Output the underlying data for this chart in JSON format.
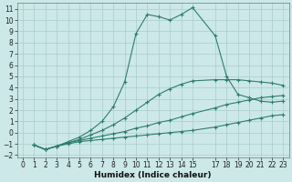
{
  "xlabel": "Humidex (Indice chaleur)",
  "bg_color": "#cce8e8",
  "grid_color": "#aacccc",
  "line_color": "#2e7d6e",
  "xlim": [
    -0.5,
    23.5
  ],
  "ylim": [
    -2.2,
    11.5
  ],
  "xticks": [
    0,
    1,
    2,
    3,
    4,
    5,
    6,
    7,
    8,
    9,
    10,
    11,
    12,
    13,
    14,
    15,
    17,
    18,
    19,
    20,
    21,
    22,
    23
  ],
  "yticks": [
    -2,
    -1,
    0,
    1,
    2,
    3,
    4,
    5,
    6,
    7,
    8,
    9,
    10,
    11
  ],
  "series": [
    {
      "x": [
        1,
        2,
        3,
        4,
        5,
        6,
        7,
        8,
        9,
        10,
        11,
        12,
        13,
        14,
        15,
        17,
        18,
        19,
        20,
        21,
        22,
        23
      ],
      "y": [
        -1.1,
        -1.5,
        -1.2,
        -1.0,
        -0.8,
        -0.7,
        -0.6,
        -0.5,
        -0.4,
        -0.3,
        -0.2,
        -0.1,
        0.0,
        0.1,
        0.2,
        0.5,
        0.7,
        0.9,
        1.1,
        1.3,
        1.5,
        1.6
      ]
    },
    {
      "x": [
        1,
        2,
        3,
        4,
        5,
        6,
        7,
        8,
        9,
        10,
        11,
        12,
        13,
        14,
        15,
        17,
        18,
        19,
        20,
        21,
        22,
        23
      ],
      "y": [
        -1.1,
        -1.5,
        -1.2,
        -0.9,
        -0.7,
        -0.5,
        -0.3,
        -0.1,
        0.1,
        0.4,
        0.6,
        0.9,
        1.1,
        1.4,
        1.7,
        2.2,
        2.5,
        2.7,
        2.9,
        3.1,
        3.2,
        3.3
      ]
    },
    {
      "x": [
        1,
        2,
        3,
        4,
        5,
        6,
        7,
        8,
        9,
        10,
        11,
        12,
        13,
        14,
        15,
        17,
        18,
        19,
        20,
        21,
        22,
        23
      ],
      "y": [
        -1.1,
        -1.5,
        -1.2,
        -0.9,
        -0.6,
        -0.2,
        0.2,
        0.7,
        1.3,
        2.0,
        2.7,
        3.4,
        3.9,
        4.3,
        4.6,
        4.7,
        4.7,
        4.7,
        4.6,
        4.5,
        4.4,
        4.2
      ]
    },
    {
      "x": [
        1,
        2,
        3,
        4,
        5,
        6,
        7,
        8,
        9,
        10,
        11,
        12,
        13,
        14,
        15,
        17,
        18,
        19,
        20,
        21,
        22,
        23
      ],
      "y": [
        -1.1,
        -1.5,
        -1.2,
        -0.8,
        -0.4,
        0.2,
        1.0,
        2.3,
        4.5,
        8.8,
        10.5,
        10.3,
        10.0,
        10.5,
        11.1,
        8.6,
        5.0,
        3.4,
        3.1,
        2.8,
        2.7,
        2.8
      ]
    }
  ]
}
